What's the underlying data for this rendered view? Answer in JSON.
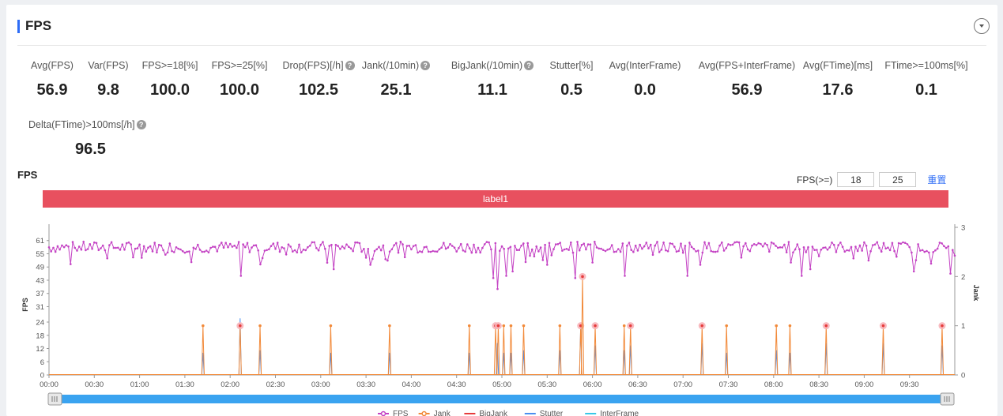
{
  "header": {
    "title": "FPS"
  },
  "metrics": [
    {
      "label": "Avg(FPS)",
      "value": "56.9",
      "help": false
    },
    {
      "label": "Var(FPS)",
      "value": "9.8",
      "help": false
    },
    {
      "label": "FPS>=18[%]",
      "value": "100.0",
      "help": false
    },
    {
      "label": "FPS>=25[%]",
      "value": "100.0",
      "help": false
    },
    {
      "label": "Drop(FPS)[/h]",
      "value": "102.5",
      "help": true
    },
    {
      "label": "Jank(/10min)",
      "value": "25.1",
      "help": true
    },
    {
      "label": "BigJank(/10min)",
      "value": "11.1",
      "help": true
    },
    {
      "label": "Stutter[%]",
      "value": "0.5",
      "help": false
    },
    {
      "label": "Avg(InterFrame)",
      "value": "0.0",
      "help": false
    },
    {
      "label": "Avg(FPS+InterFrame)",
      "value": "56.9",
      "help": false
    },
    {
      "label": "Avg(FTime)[ms]",
      "value": "17.6",
      "help": false
    },
    {
      "label": "FTime>=100ms[%]",
      "value": "0.1",
      "help": false
    },
    {
      "label": "Delta(FTime)>100ms[/h]",
      "value": "96.5",
      "help": true
    }
  ],
  "chart_section": {
    "title": "FPS",
    "threshold_label": "FPS(>=)",
    "threshold_low": "18",
    "threshold_high": "25",
    "reset_label": "重置",
    "label_band": "label1"
  },
  "chart_data": {
    "type": "line",
    "y_left": {
      "label": "FPS",
      "ticks": [
        0,
        6,
        12,
        18,
        24,
        31,
        37,
        43,
        49,
        55,
        61
      ],
      "range": [
        0,
        67
      ]
    },
    "y_right": {
      "label": "Jank",
      "ticks": [
        0,
        1,
        2,
        3
      ],
      "range": [
        0,
        3
      ]
    },
    "x_ticks": [
      "00:00",
      "00:30",
      "01:00",
      "01:30",
      "02:00",
      "02:30",
      "03:00",
      "03:30",
      "04:00",
      "04:30",
      "05:00",
      "05:30",
      "06:00",
      "06:30",
      "07:00",
      "07:30",
      "08:00",
      "08:30",
      "09:00",
      "09:30"
    ],
    "x_range_minutes": [
      0,
      10
    ],
    "fps_baseline": 58,
    "fps_dips": [
      {
        "t": 2.11,
        "v": 45
      },
      {
        "t": 3.08,
        "v": 51
      },
      {
        "t": 3.15,
        "v": 48
      },
      {
        "t": 3.55,
        "v": 50
      },
      {
        "t": 4.9,
        "v": 44
      },
      {
        "t": 4.95,
        "v": 39
      },
      {
        "t": 5.05,
        "v": 45
      },
      {
        "t": 5.12,
        "v": 47
      },
      {
        "t": 5.5,
        "v": 50
      },
      {
        "t": 5.82,
        "v": 44
      },
      {
        "t": 6.36,
        "v": 45
      },
      {
        "t": 7.05,
        "v": 45
      },
      {
        "t": 7.18,
        "v": 50
      },
      {
        "t": 8.3,
        "v": 45
      },
      {
        "t": 8.4,
        "v": 48
      },
      {
        "t": 9.55,
        "v": 47
      },
      {
        "t": 9.95,
        "v": 46
      }
    ],
    "series": [
      {
        "name": "FPS",
        "color": "#c443c4"
      },
      {
        "name": "Jank",
        "color": "#f28a3a"
      },
      {
        "name": "BigJank",
        "color": "#e63c3c"
      },
      {
        "name": "Stutter",
        "color": "#4a8ff0"
      },
      {
        "name": "InterFrame",
        "color": "#38c8e8"
      }
    ],
    "jank_spikes": [
      {
        "t": 1.7,
        "v": 1,
        "big": false
      },
      {
        "t": 2.11,
        "v": 1,
        "big": true
      },
      {
        "t": 2.33,
        "v": 1,
        "big": false
      },
      {
        "t": 3.11,
        "v": 1,
        "big": false
      },
      {
        "t": 3.76,
        "v": 1,
        "big": false
      },
      {
        "t": 4.64,
        "v": 1,
        "big": false
      },
      {
        "t": 4.93,
        "v": 1,
        "big": true
      },
      {
        "t": 4.96,
        "v": 1,
        "big": true
      },
      {
        "t": 5.02,
        "v": 1,
        "big": false
      },
      {
        "t": 5.1,
        "v": 1,
        "big": false
      },
      {
        "t": 5.24,
        "v": 1,
        "big": false
      },
      {
        "t": 5.64,
        "v": 1,
        "big": false
      },
      {
        "t": 5.87,
        "v": 1,
        "big": true
      },
      {
        "t": 5.89,
        "v": 2,
        "big": true
      },
      {
        "t": 6.03,
        "v": 1,
        "big": true
      },
      {
        "t": 6.35,
        "v": 1,
        "big": false
      },
      {
        "t": 6.42,
        "v": 1,
        "big": true
      },
      {
        "t": 7.21,
        "v": 1,
        "big": true
      },
      {
        "t": 7.48,
        "v": 1,
        "big": false
      },
      {
        "t": 8.03,
        "v": 1,
        "big": false
      },
      {
        "t": 8.18,
        "v": 1,
        "big": false
      },
      {
        "t": 8.58,
        "v": 1,
        "big": true
      },
      {
        "t": 9.21,
        "v": 1,
        "big": true
      },
      {
        "t": 9.86,
        "v": 1,
        "big": true
      }
    ],
    "stutter_spikes": [
      {
        "t": 1.7,
        "v": 0.45
      },
      {
        "t": 2.11,
        "v": 1.15
      },
      {
        "t": 2.33,
        "v": 0.5
      },
      {
        "t": 3.11,
        "v": 0.45
      },
      {
        "t": 3.76,
        "v": 0.45
      },
      {
        "t": 4.64,
        "v": 0.45
      },
      {
        "t": 4.95,
        "v": 0.65
      },
      {
        "t": 5.02,
        "v": 0.45
      },
      {
        "t": 5.1,
        "v": 0.45
      },
      {
        "t": 5.24,
        "v": 0.5
      },
      {
        "t": 5.64,
        "v": 0.5
      },
      {
        "t": 5.87,
        "v": 1.0
      },
      {
        "t": 6.03,
        "v": 0.6
      },
      {
        "t": 6.35,
        "v": 0.5
      },
      {
        "t": 6.42,
        "v": 0.6
      },
      {
        "t": 7.21,
        "v": 0.65
      },
      {
        "t": 7.48,
        "v": 0.45
      },
      {
        "t": 8.03,
        "v": 0.5
      },
      {
        "t": 8.18,
        "v": 0.45
      },
      {
        "t": 8.58,
        "v": 0.65
      },
      {
        "t": 9.21,
        "v": 0.65
      },
      {
        "t": 9.86,
        "v": 0.6
      }
    ]
  }
}
